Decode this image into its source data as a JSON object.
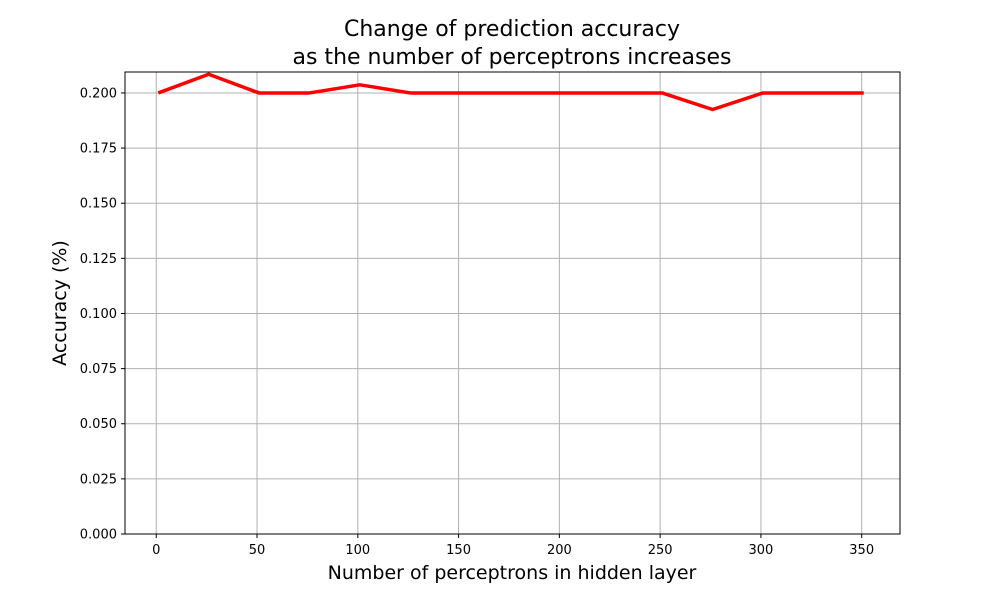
{
  "chart_data": {
    "type": "line",
    "title_lines": [
      "Change of prediction accuracy",
      "as the number of perceptrons increases"
    ],
    "xlabel": "Number of perceptrons in hidden layer",
    "ylabel": "Accuracy (%)",
    "xlim": [
      -15.5,
      369
    ],
    "ylim": [
      0,
      0.2095
    ],
    "grid": true,
    "xticks": [
      0,
      50,
      100,
      150,
      200,
      250,
      300,
      350
    ],
    "xtick_labels": [
      "0",
      "50",
      "100",
      "150",
      "200",
      "250",
      "300",
      "350"
    ],
    "yticks": [
      0,
      0.025,
      0.05,
      0.075,
      0.1,
      0.125,
      0.15,
      0.175,
      0.2
    ],
    "ytick_labels": [
      "0.000",
      "0.025",
      "0.050",
      "0.075",
      "0.100",
      "0.125",
      "0.150",
      "0.175",
      "0.200"
    ],
    "series": [
      {
        "color": "#ff0000",
        "x": [
          1,
          26,
          51,
          76,
          101,
          126,
          151,
          176,
          201,
          226,
          251,
          276,
          301,
          326,
          351
        ],
        "y": [
          0.2,
          0.2085,
          0.2,
          0.2,
          0.2037,
          0.2,
          0.2,
          0.2,
          0.2,
          0.2,
          0.2,
          0.1925,
          0.2,
          0.2,
          0.2
        ]
      }
    ]
  }
}
